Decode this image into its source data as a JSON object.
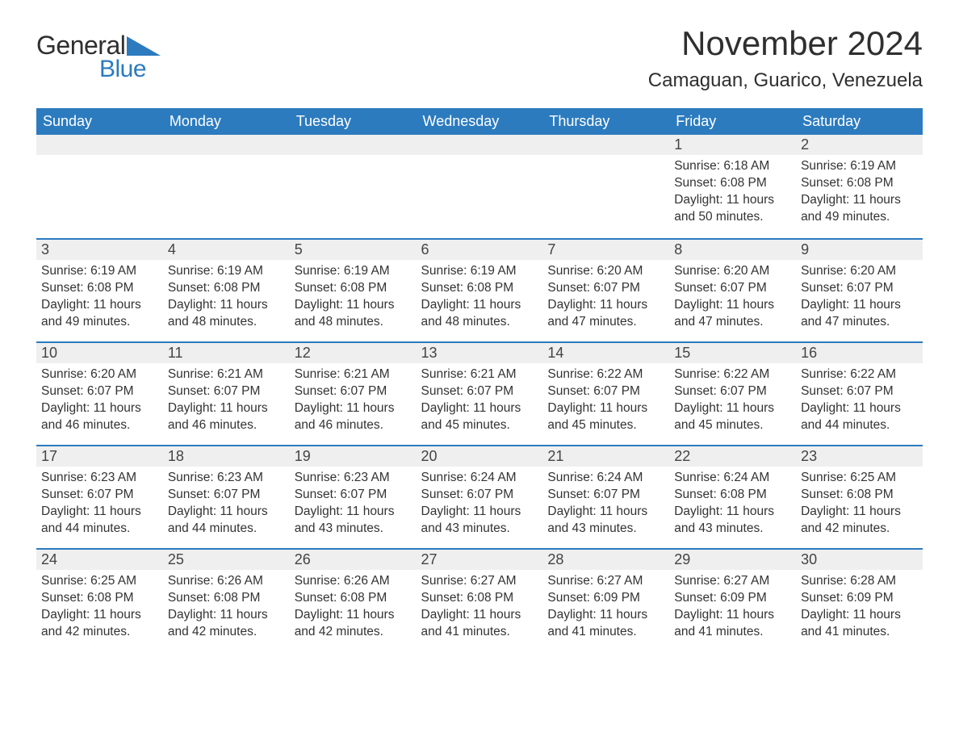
{
  "logo": {
    "general": "General",
    "blue": "Blue"
  },
  "title": "November 2024",
  "location": "Camaguan, Guarico, Venezuela",
  "colors": {
    "accent": "#2c7bbf",
    "header_bg": "#2c7bbf",
    "header_text": "#ffffff",
    "daynum_bg": "#efefef",
    "border": "#2c7bbf",
    "text": "#333333",
    "logo_dark": "#2f2f2f",
    "background": "#ffffff"
  },
  "typography": {
    "title_size_pt": 32,
    "location_size_pt": 18,
    "header_size_pt": 14,
    "body_size_pt": 12,
    "family": "Arial"
  },
  "layout": {
    "columns": 7,
    "rows": 5,
    "week_starts": "Sunday"
  },
  "day_headers": [
    "Sunday",
    "Monday",
    "Tuesday",
    "Wednesday",
    "Thursday",
    "Friday",
    "Saturday"
  ],
  "weeks": [
    [
      null,
      null,
      null,
      null,
      null,
      {
        "day": "1",
        "sunrise": "Sunrise: 6:18 AM",
        "sunset": "Sunset: 6:08 PM",
        "daylight": "Daylight: 11 hours and 50 minutes."
      },
      {
        "day": "2",
        "sunrise": "Sunrise: 6:19 AM",
        "sunset": "Sunset: 6:08 PM",
        "daylight": "Daylight: 11 hours and 49 minutes."
      }
    ],
    [
      {
        "day": "3",
        "sunrise": "Sunrise: 6:19 AM",
        "sunset": "Sunset: 6:08 PM",
        "daylight": "Daylight: 11 hours and 49 minutes."
      },
      {
        "day": "4",
        "sunrise": "Sunrise: 6:19 AM",
        "sunset": "Sunset: 6:08 PM",
        "daylight": "Daylight: 11 hours and 48 minutes."
      },
      {
        "day": "5",
        "sunrise": "Sunrise: 6:19 AM",
        "sunset": "Sunset: 6:08 PM",
        "daylight": "Daylight: 11 hours and 48 minutes."
      },
      {
        "day": "6",
        "sunrise": "Sunrise: 6:19 AM",
        "sunset": "Sunset: 6:08 PM",
        "daylight": "Daylight: 11 hours and 48 minutes."
      },
      {
        "day": "7",
        "sunrise": "Sunrise: 6:20 AM",
        "sunset": "Sunset: 6:07 PM",
        "daylight": "Daylight: 11 hours and 47 minutes."
      },
      {
        "day": "8",
        "sunrise": "Sunrise: 6:20 AM",
        "sunset": "Sunset: 6:07 PM",
        "daylight": "Daylight: 11 hours and 47 minutes."
      },
      {
        "day": "9",
        "sunrise": "Sunrise: 6:20 AM",
        "sunset": "Sunset: 6:07 PM",
        "daylight": "Daylight: 11 hours and 47 minutes."
      }
    ],
    [
      {
        "day": "10",
        "sunrise": "Sunrise: 6:20 AM",
        "sunset": "Sunset: 6:07 PM",
        "daylight": "Daylight: 11 hours and 46 minutes."
      },
      {
        "day": "11",
        "sunrise": "Sunrise: 6:21 AM",
        "sunset": "Sunset: 6:07 PM",
        "daylight": "Daylight: 11 hours and 46 minutes."
      },
      {
        "day": "12",
        "sunrise": "Sunrise: 6:21 AM",
        "sunset": "Sunset: 6:07 PM",
        "daylight": "Daylight: 11 hours and 46 minutes."
      },
      {
        "day": "13",
        "sunrise": "Sunrise: 6:21 AM",
        "sunset": "Sunset: 6:07 PM",
        "daylight": "Daylight: 11 hours and 45 minutes."
      },
      {
        "day": "14",
        "sunrise": "Sunrise: 6:22 AM",
        "sunset": "Sunset: 6:07 PM",
        "daylight": "Daylight: 11 hours and 45 minutes."
      },
      {
        "day": "15",
        "sunrise": "Sunrise: 6:22 AM",
        "sunset": "Sunset: 6:07 PM",
        "daylight": "Daylight: 11 hours and 45 minutes."
      },
      {
        "day": "16",
        "sunrise": "Sunrise: 6:22 AM",
        "sunset": "Sunset: 6:07 PM",
        "daylight": "Daylight: 11 hours and 44 minutes."
      }
    ],
    [
      {
        "day": "17",
        "sunrise": "Sunrise: 6:23 AM",
        "sunset": "Sunset: 6:07 PM",
        "daylight": "Daylight: 11 hours and 44 minutes."
      },
      {
        "day": "18",
        "sunrise": "Sunrise: 6:23 AM",
        "sunset": "Sunset: 6:07 PM",
        "daylight": "Daylight: 11 hours and 44 minutes."
      },
      {
        "day": "19",
        "sunrise": "Sunrise: 6:23 AM",
        "sunset": "Sunset: 6:07 PM",
        "daylight": "Daylight: 11 hours and 43 minutes."
      },
      {
        "day": "20",
        "sunrise": "Sunrise: 6:24 AM",
        "sunset": "Sunset: 6:07 PM",
        "daylight": "Daylight: 11 hours and 43 minutes."
      },
      {
        "day": "21",
        "sunrise": "Sunrise: 6:24 AM",
        "sunset": "Sunset: 6:07 PM",
        "daylight": "Daylight: 11 hours and 43 minutes."
      },
      {
        "day": "22",
        "sunrise": "Sunrise: 6:24 AM",
        "sunset": "Sunset: 6:08 PM",
        "daylight": "Daylight: 11 hours and 43 minutes."
      },
      {
        "day": "23",
        "sunrise": "Sunrise: 6:25 AM",
        "sunset": "Sunset: 6:08 PM",
        "daylight": "Daylight: 11 hours and 42 minutes."
      }
    ],
    [
      {
        "day": "24",
        "sunrise": "Sunrise: 6:25 AM",
        "sunset": "Sunset: 6:08 PM",
        "daylight": "Daylight: 11 hours and 42 minutes."
      },
      {
        "day": "25",
        "sunrise": "Sunrise: 6:26 AM",
        "sunset": "Sunset: 6:08 PM",
        "daylight": "Daylight: 11 hours and 42 minutes."
      },
      {
        "day": "26",
        "sunrise": "Sunrise: 6:26 AM",
        "sunset": "Sunset: 6:08 PM",
        "daylight": "Daylight: 11 hours and 42 minutes."
      },
      {
        "day": "27",
        "sunrise": "Sunrise: 6:27 AM",
        "sunset": "Sunset: 6:08 PM",
        "daylight": "Daylight: 11 hours and 41 minutes."
      },
      {
        "day": "28",
        "sunrise": "Sunrise: 6:27 AM",
        "sunset": "Sunset: 6:09 PM",
        "daylight": "Daylight: 11 hours and 41 minutes."
      },
      {
        "day": "29",
        "sunrise": "Sunrise: 6:27 AM",
        "sunset": "Sunset: 6:09 PM",
        "daylight": "Daylight: 11 hours and 41 minutes."
      },
      {
        "day": "30",
        "sunrise": "Sunrise: 6:28 AM",
        "sunset": "Sunset: 6:09 PM",
        "daylight": "Daylight: 11 hours and 41 minutes."
      }
    ]
  ]
}
